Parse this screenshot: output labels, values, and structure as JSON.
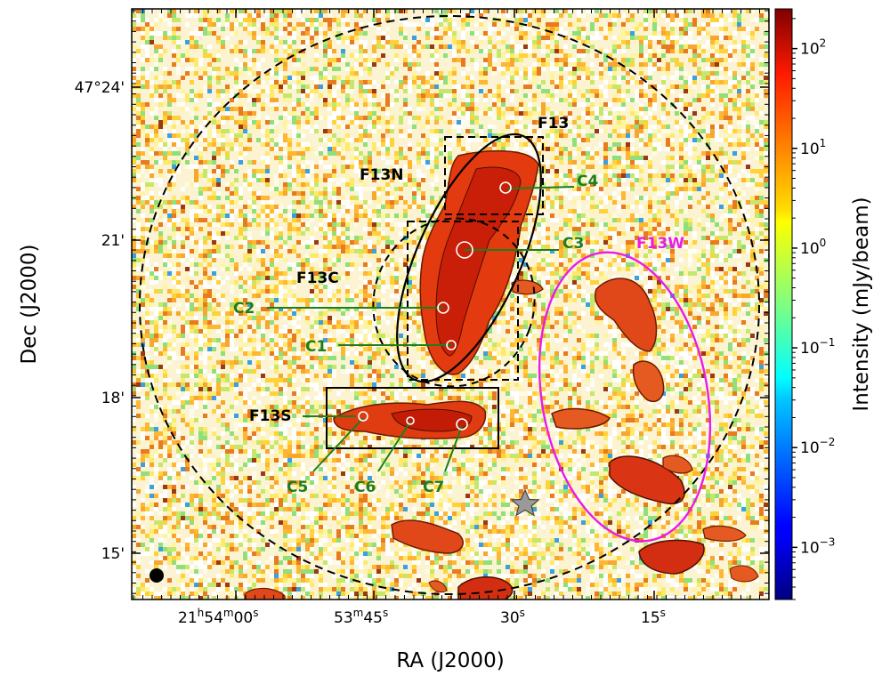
{
  "chart_data": {
    "type": "heatmap",
    "title": "",
    "xlabel": "RA (J2000)",
    "ylabel": "Dec (J2000)",
    "colorbar_label": "Intensity (mJy/beam)",
    "colorbar_scale": "log",
    "colorbar_range": [
      0.0003,
      250
    ],
    "colorbar_ticks": [
      {
        "value": 0.001,
        "mant": "10",
        "exp": "−3"
      },
      {
        "value": 0.01,
        "mant": "10",
        "exp": "−2"
      },
      {
        "value": 0.1,
        "mant": "10",
        "exp": "−1"
      },
      {
        "value": 1,
        "mant": "10",
        "exp": "0"
      },
      {
        "value": 10,
        "mant": "10",
        "exp": "1"
      },
      {
        "value": 100,
        "mant": "10",
        "exp": "2"
      }
    ],
    "colormap": "jet",
    "x_ticks": [
      {
        "h": "21",
        "hs": "h",
        "m": "54",
        "ms": "m",
        "s": "00",
        "ss": "s"
      },
      {
        "m": "53",
        "ms": "m",
        "s": "45",
        "ss": "s"
      },
      {
        "s": "30",
        "ss": "s"
      },
      {
        "s": "15",
        "ss": "s"
      }
    ],
    "x_ticks_seconds_offset": [
      0,
      15,
      30,
      45
    ],
    "y_ticks": [
      "47°24'",
      "21'",
      "18'",
      "15'"
    ],
    "y_ticks_arcmin": [
      24,
      21,
      18,
      15
    ],
    "filament_labels": [
      "F13",
      "F13N",
      "F13C",
      "F13S",
      "F13W"
    ],
    "clumps": [
      {
        "name": "C1",
        "ra_offset_s": 36.0,
        "dec_arcmin": 19.0
      },
      {
        "name": "C2",
        "ra_offset_s": 37.0,
        "dec_arcmin": 19.7
      },
      {
        "name": "C3",
        "ra_offset_s": 35.0,
        "dec_arcmin": 20.9
      },
      {
        "name": "C4",
        "ra_offset_s": 30.5,
        "dec_arcmin": 22.3
      },
      {
        "name": "C5",
        "ra_offset_s": 54.0,
        "dec_arcmin": 17.6
      },
      {
        "name": "C6",
        "ra_offset_s": 40.0,
        "dec_arcmin": 17.5
      },
      {
        "name": "C7",
        "ra_offset_s": 35.5,
        "dec_arcmin": 17.4
      }
    ],
    "grid": false,
    "legend": "none"
  },
  "colors": {
    "filament_label": "#000000",
    "clump_label": "#1e7d1e",
    "f13w_label": "#e81ce8",
    "f13w_ellipse": "#e81ce8"
  },
  "icons": {
    "star": "star-icon",
    "beam": "beam-icon"
  }
}
